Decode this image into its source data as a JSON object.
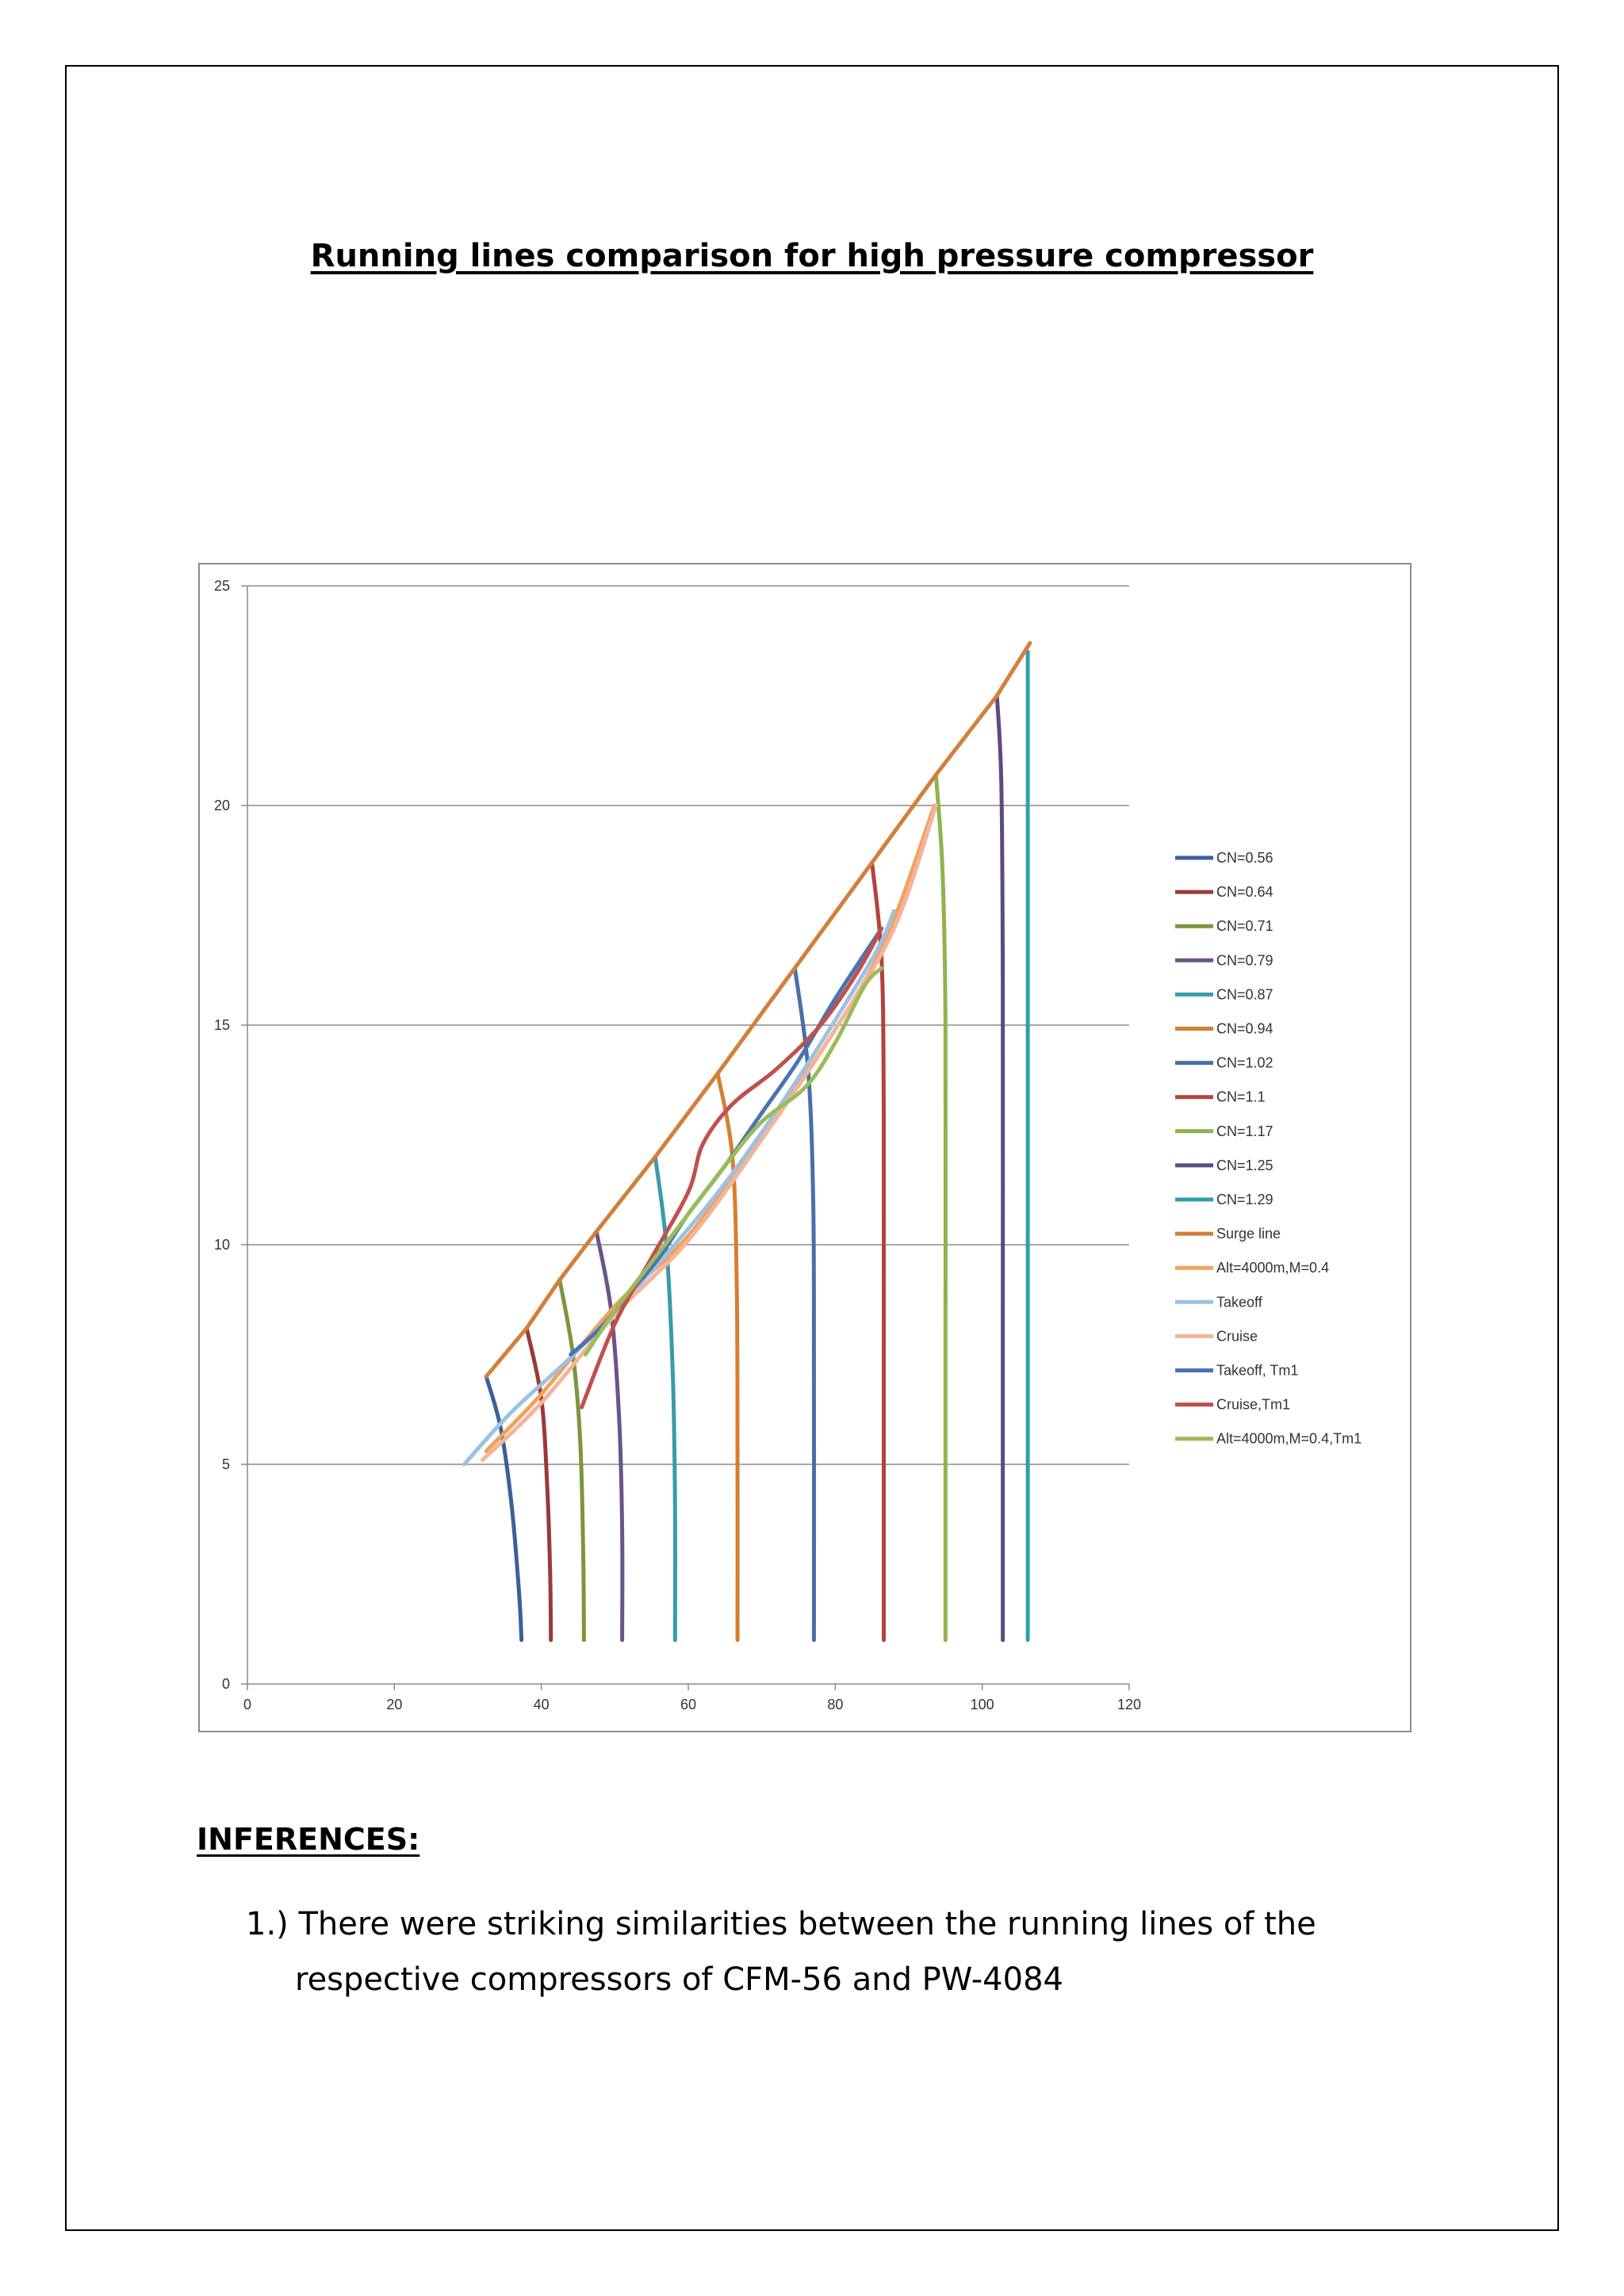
{
  "document": {
    "title": "Running lines comparison for high pressure compressor",
    "inferences_heading": "INFERENCES:",
    "inferences": [
      {
        "number": "1.)",
        "text": "There were striking similarities between the running lines of the respective compressors of CFM-56 and PW-4084"
      }
    ]
  },
  "chart_data": {
    "type": "line",
    "title": "",
    "xlabel": "",
    "ylabel": "",
    "xlim": [
      0,
      120
    ],
    "ylim": [
      0,
      25
    ],
    "x_ticks": [
      0,
      20,
      40,
      60,
      80,
      100,
      120
    ],
    "y_ticks": [
      0,
      5,
      10,
      15,
      20,
      25
    ],
    "horizontal_grid": true,
    "legend_position": "right",
    "series": [
      {
        "name": "CN=0.56",
        "color": "#3c5f9a",
        "points": [
          [
            32.5,
            7.0
          ],
          [
            34.5,
            5.8
          ],
          [
            36,
            4.0
          ],
          [
            37,
            2.0
          ],
          [
            37.3,
            1.0
          ]
        ]
      },
      {
        "name": "CN=0.64",
        "color": "#9a3a38",
        "points": [
          [
            38,
            8.1
          ],
          [
            40,
            6.5
          ],
          [
            40.8,
            4.5
          ],
          [
            41.2,
            2.5
          ],
          [
            41.3,
            1.0
          ]
        ]
      },
      {
        "name": "CN=0.71",
        "color": "#7a963f",
        "points": [
          [
            42.5,
            9.2
          ],
          [
            44.3,
            7.5
          ],
          [
            45.3,
            5.5
          ],
          [
            45.7,
            3.0
          ],
          [
            45.8,
            1.0
          ]
        ]
      },
      {
        "name": "CN=0.79",
        "color": "#6a5489",
        "points": [
          [
            47.5,
            10.3
          ],
          [
            49.5,
            8.5
          ],
          [
            50.6,
            6.0
          ],
          [
            51,
            3.5
          ],
          [
            51,
            1.0
          ]
        ]
      },
      {
        "name": "CN=0.87",
        "color": "#3a9aaa",
        "points": [
          [
            55.5,
            12.0
          ],
          [
            57,
            10.0
          ],
          [
            57.9,
            7.0
          ],
          [
            58.2,
            4.0
          ],
          [
            58.2,
            1.0
          ]
        ]
      },
      {
        "name": "CN=0.94",
        "color": "#d57f33",
        "points": [
          [
            64,
            13.9
          ],
          [
            66,
            12.0
          ],
          [
            66.6,
            9.0
          ],
          [
            66.7,
            5.0
          ],
          [
            66.7,
            1.0
          ]
        ]
      },
      {
        "name": "CN=1.02",
        "color": "#4a6fa8",
        "points": [
          [
            74.5,
            16.3
          ],
          [
            76.3,
            14.0
          ],
          [
            77,
            11.0
          ],
          [
            77.1,
            7.0
          ],
          [
            77.1,
            1.0
          ]
        ]
      },
      {
        "name": "CN=1.1",
        "color": "#b0433f",
        "points": [
          [
            85,
            18.7
          ],
          [
            86.3,
            16.5
          ],
          [
            86.6,
            13.0
          ],
          [
            86.6,
            7.0
          ],
          [
            86.6,
            1.0
          ]
        ]
      },
      {
        "name": "CN=1.17",
        "color": "#8eb44e",
        "points": [
          [
            93.7,
            20.7
          ],
          [
            94.6,
            18.5
          ],
          [
            95,
            15.0
          ],
          [
            95,
            8.0
          ],
          [
            95,
            1.0
          ]
        ]
      },
      {
        "name": "CN=1.25",
        "color": "#5d4a7e",
        "points": [
          [
            102,
            22.5
          ],
          [
            102.6,
            20.5
          ],
          [
            102.8,
            16.0
          ],
          [
            102.8,
            8.0
          ],
          [
            102.8,
            1.0
          ]
        ]
      },
      {
        "name": "CN=1.29",
        "color": "#2f9fae",
        "points": [
          [
            106.2,
            23.5
          ],
          [
            106.2,
            18.0
          ],
          [
            106.2,
            10.0
          ],
          [
            106.2,
            1.0
          ]
        ]
      },
      {
        "name": "Surge line",
        "color": "#d1803c",
        "points": [
          [
            32.5,
            7.0
          ],
          [
            38,
            8.1
          ],
          [
            42.5,
            9.2
          ],
          [
            47.5,
            10.3
          ],
          [
            55.5,
            12.0
          ],
          [
            64,
            13.9
          ],
          [
            74.5,
            16.3
          ],
          [
            85,
            18.7
          ],
          [
            93.7,
            20.7
          ],
          [
            102,
            22.5
          ],
          [
            106.5,
            23.7
          ]
        ]
      },
      {
        "name": "Alt=4000m,M=0.4",
        "color": "#f0a25c",
        "points": [
          [
            32.5,
            5.3
          ],
          [
            40,
            6.6
          ],
          [
            50,
            8.6
          ],
          [
            60,
            10.2
          ],
          [
            70,
            12.5
          ],
          [
            80,
            14.9
          ],
          [
            87,
            17.0
          ],
          [
            93.5,
            20.0
          ]
        ]
      },
      {
        "name": "Takeoff",
        "color": "#9bc2e3",
        "points": [
          [
            29.5,
            5.0
          ],
          [
            36,
            6.2
          ],
          [
            45,
            7.6
          ],
          [
            55,
            9.4
          ],
          [
            65,
            11.4
          ],
          [
            75,
            13.8
          ],
          [
            85,
            16.5
          ],
          [
            88,
            17.6
          ]
        ]
      },
      {
        "name": "Cruise",
        "color": "#f5b49a",
        "points": [
          [
            32,
            5.1
          ],
          [
            40,
            6.4
          ],
          [
            50,
            8.4
          ],
          [
            60,
            10.1
          ],
          [
            70,
            12.4
          ],
          [
            80,
            14.9
          ],
          [
            88,
            17.2
          ],
          [
            93.7,
            20.0
          ]
        ]
      },
      {
        "name": "Takeoff, Tm1",
        "color": "#4a73b3",
        "points": [
          [
            44,
            7.5
          ],
          [
            48,
            8.1
          ],
          [
            52,
            8.9
          ],
          [
            56,
            9.7
          ],
          [
            60,
            10.7
          ],
          [
            65,
            11.8
          ],
          [
            70,
            13.0
          ],
          [
            75,
            14.2
          ],
          [
            80,
            15.6
          ],
          [
            86.3,
            17.2
          ]
        ]
      },
      {
        "name": "Cruise,Tm1",
        "color": "#c0504d",
        "points": [
          [
            45.5,
            6.3
          ],
          [
            50,
            8.2
          ],
          [
            55,
            9.7
          ],
          [
            60,
            11.2
          ],
          [
            62,
            12.3
          ],
          [
            66,
            13.2
          ],
          [
            72,
            14.0
          ],
          [
            78,
            15.0
          ],
          [
            83,
            16.2
          ],
          [
            86.3,
            17.2
          ]
        ]
      },
      {
        "name": "Alt=4000m,M=0.4,Tm1",
        "color": "#9bbb59",
        "points": [
          [
            46,
            7.5
          ],
          [
            50,
            8.5
          ],
          [
            55,
            9.6
          ],
          [
            60,
            10.7
          ],
          [
            65,
            11.8
          ],
          [
            70,
            12.8
          ],
          [
            76,
            13.6
          ],
          [
            80,
            14.6
          ],
          [
            84,
            15.9
          ],
          [
            86.3,
            16.3
          ]
        ]
      }
    ]
  }
}
